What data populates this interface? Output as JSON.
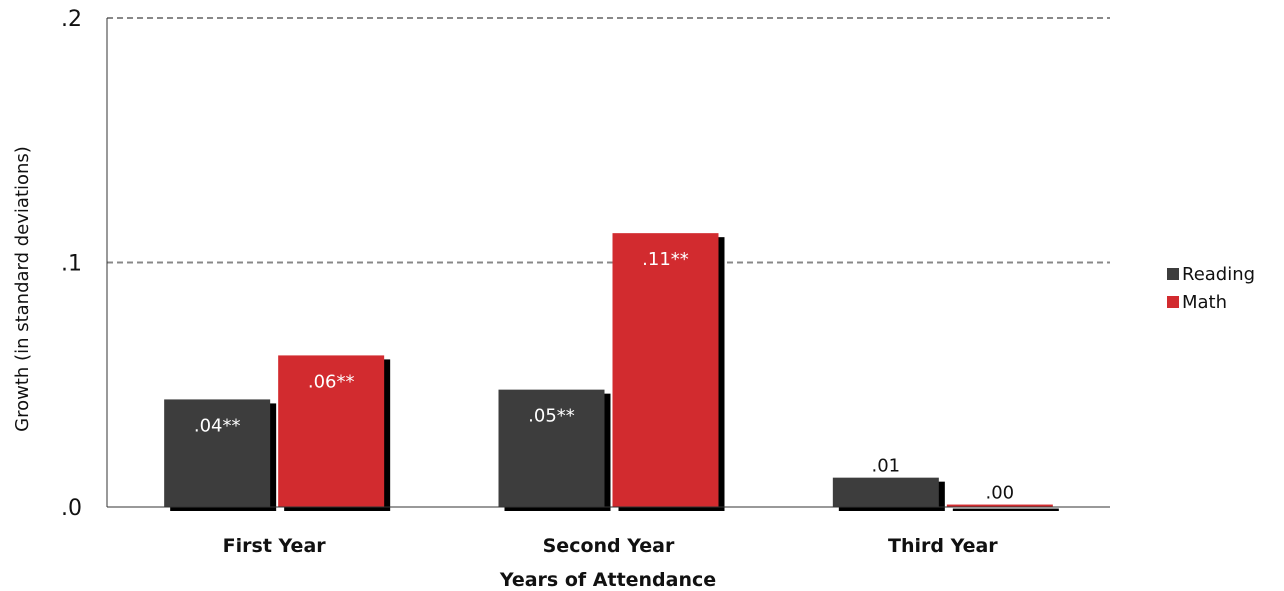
{
  "chart_data": {
    "type": "bar",
    "title": "",
    "xlabel": "Years of Attendance",
    "ylabel": "Growth (in standard deviations)",
    "categories": [
      "First Year",
      "Second Year",
      "Third Year"
    ],
    "series": [
      {
        "name": "Reading",
        "color": "#3d3d3d",
        "values": [
          0.044,
          0.048,
          0.012
        ],
        "labels": [
          ".04**",
          ".05**",
          ".01"
        ]
      },
      {
        "name": "Math",
        "color": "#d22b2f",
        "values": [
          0.062,
          0.112,
          0.001
        ],
        "labels": [
          ".06**",
          ".11**",
          ".00"
        ]
      }
    ],
    "ylim": [
      0,
      0.2
    ],
    "yticks": [
      0,
      0.1,
      0.2
    ],
    "ytick_labels": [
      ".0",
      ".1",
      ".2"
    ],
    "grid": "dashed horizontal at .1 and .2",
    "legend": "right",
    "shadow_color": "#000000"
  }
}
